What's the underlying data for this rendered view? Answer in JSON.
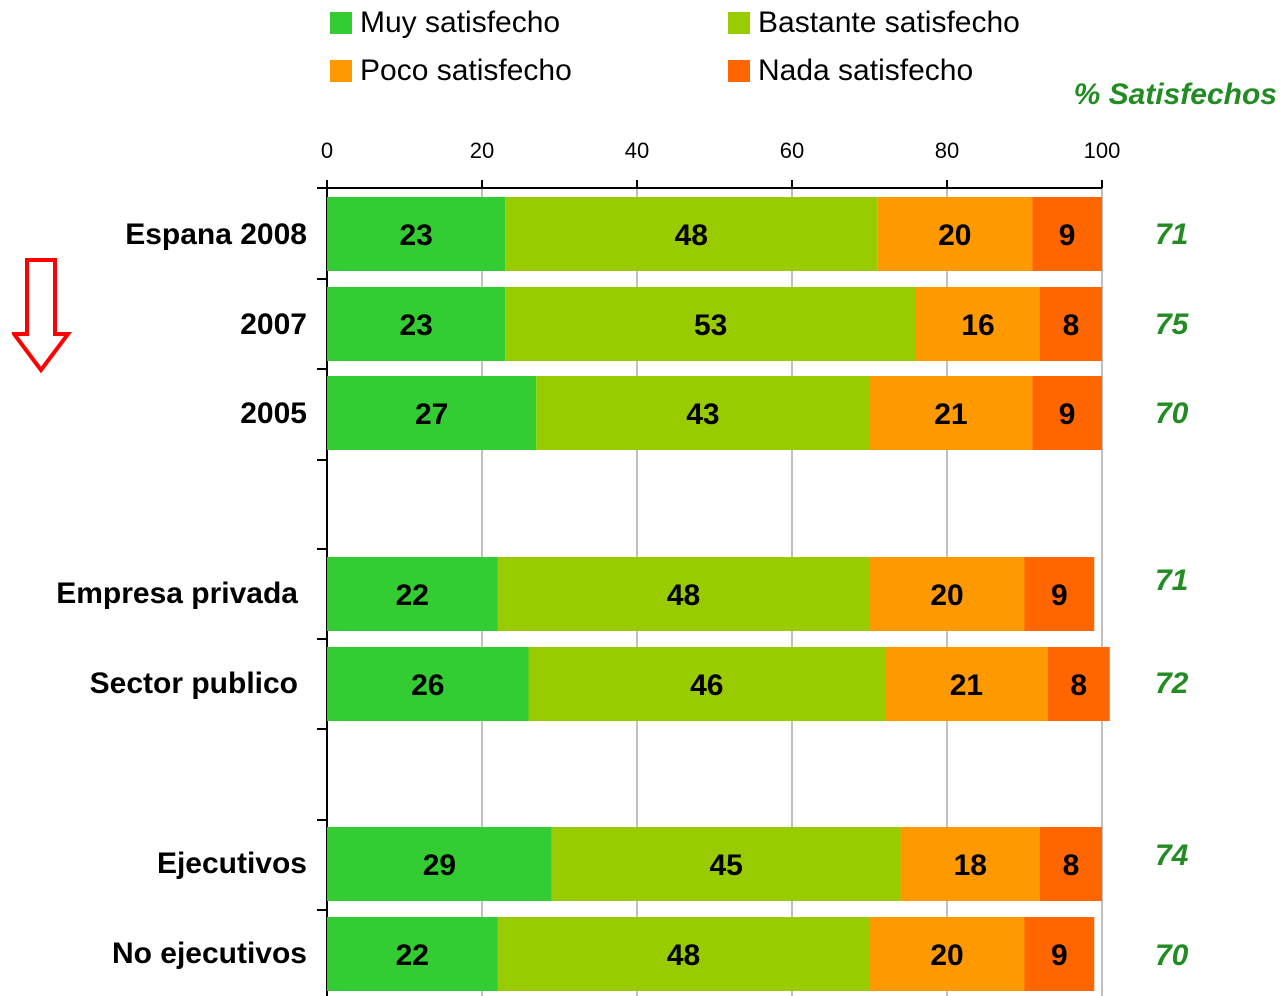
{
  "legend": [
    {
      "label": "Muy satisfecho",
      "color": "#33CC33"
    },
    {
      "label": "Bastante satisfecho",
      "color": "#99CC00"
    },
    {
      "label": "Poco satisfecho",
      "color": "#FF9900"
    },
    {
      "label": "Nada satisfecho",
      "color": "#FF6600"
    }
  ],
  "satisfied_header": "% Satisfechos",
  "arrow_icon": "down-arrow-icon",
  "chart_data": {
    "type": "bar",
    "orientation": "horizontal",
    "stacked": true,
    "xlim": [
      0,
      100
    ],
    "x_ticks": [
      "0",
      "20",
      "40",
      "60",
      "80",
      "100"
    ],
    "grid": true,
    "legend_position": "top",
    "categories": [
      "Espana 2008",
      "2007",
      "2005",
      "Empresa privada",
      "Sector publico",
      "Ejecutivos",
      "No ejecutivos"
    ],
    "series": [
      {
        "name": "Muy satisfecho",
        "values": [
          23,
          23,
          27,
          22,
          26,
          29,
          22
        ]
      },
      {
        "name": "Bastante satisfecho",
        "values": [
          48,
          53,
          43,
          48,
          46,
          45,
          48
        ]
      },
      {
        "name": "Poco satisfecho",
        "values": [
          20,
          16,
          21,
          20,
          21,
          18,
          20
        ]
      },
      {
        "name": "Nada satisfecho",
        "values": [
          9,
          8,
          9,
          9,
          8,
          8,
          9
        ]
      }
    ],
    "satisfied_pct": [
      "71",
      "75",
      "70",
      "71",
      "72",
      "74",
      "70"
    ]
  }
}
